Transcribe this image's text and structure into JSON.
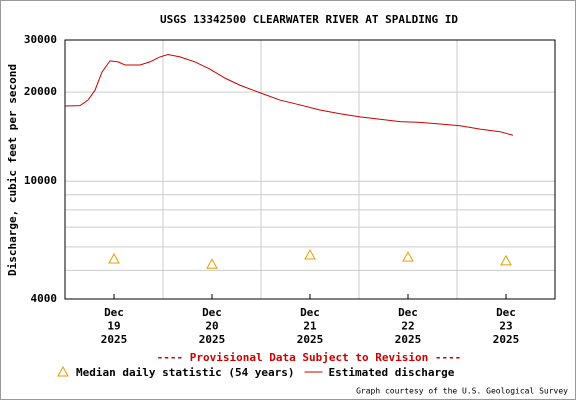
{
  "chart_data": {
    "type": "line",
    "title": "USGS 13342500 CLEARWATER RIVER AT SPALDING ID",
    "ylabel": "Discharge, cubic feet per second",
    "annotation": "---- Provisional Data Subject to Revision ----",
    "credit": "Graph courtesy of the U.S. Geological Survey",
    "log_y": true,
    "grid": true,
    "ylim": [
      4000,
      30000
    ],
    "yticks": [
      4000,
      10000,
      20000,
      30000
    ],
    "yminor": [
      5000,
      6000,
      7000,
      8000,
      9000
    ],
    "xlim": [
      19,
      24
    ],
    "xgrid": [
      20,
      21,
      22,
      23
    ],
    "xticks": [
      {
        "value": 19.5,
        "label": [
          "Dec",
          "19",
          "2025"
        ]
      },
      {
        "value": 20.5,
        "label": [
          "Dec",
          "20",
          "2025"
        ]
      },
      {
        "value": 21.5,
        "label": [
          "Dec",
          "21",
          "2025"
        ]
      },
      {
        "value": 22.5,
        "label": [
          "Dec",
          "22",
          "2025"
        ]
      },
      {
        "value": 23.5,
        "label": [
          "Dec",
          "23",
          "2025"
        ]
      }
    ],
    "series": [
      {
        "name": "Median daily statistic (54 years)",
        "color": "#e0a000",
        "marker": "triangle",
        "x": [
          19.5,
          20.5,
          21.5,
          22.5,
          23.5
        ],
        "values": [
          5460,
          5240,
          5630,
          5540,
          5380
        ]
      },
      {
        "name": "Estimated discharge",
        "color": "#cc0000",
        "marker": "line",
        "x": [
          19,
          19.153,
          19.235,
          19.306,
          19.378,
          19.459,
          19.541,
          19.612,
          19.765,
          19.867,
          19.969,
          20.051,
          20.173,
          20.327,
          20.48,
          20.633,
          20.786,
          20.99,
          21.194,
          21.398,
          21.602,
          21.806,
          22.01,
          22.214,
          22.418,
          22.622,
          22.827,
          23.031,
          23.235,
          23.439,
          23.571
        ],
        "values": [
          17960,
          18000,
          18800,
          20300,
          23400,
          25500,
          25300,
          24700,
          24700,
          25300,
          26300,
          26800,
          26300,
          25300,
          23900,
          22300,
          21100,
          19900,
          18800,
          18100,
          17400,
          16900,
          16500,
          16200,
          15900,
          15800,
          15600,
          15400,
          15000,
          14700,
          14300
        ]
      }
    ]
  }
}
